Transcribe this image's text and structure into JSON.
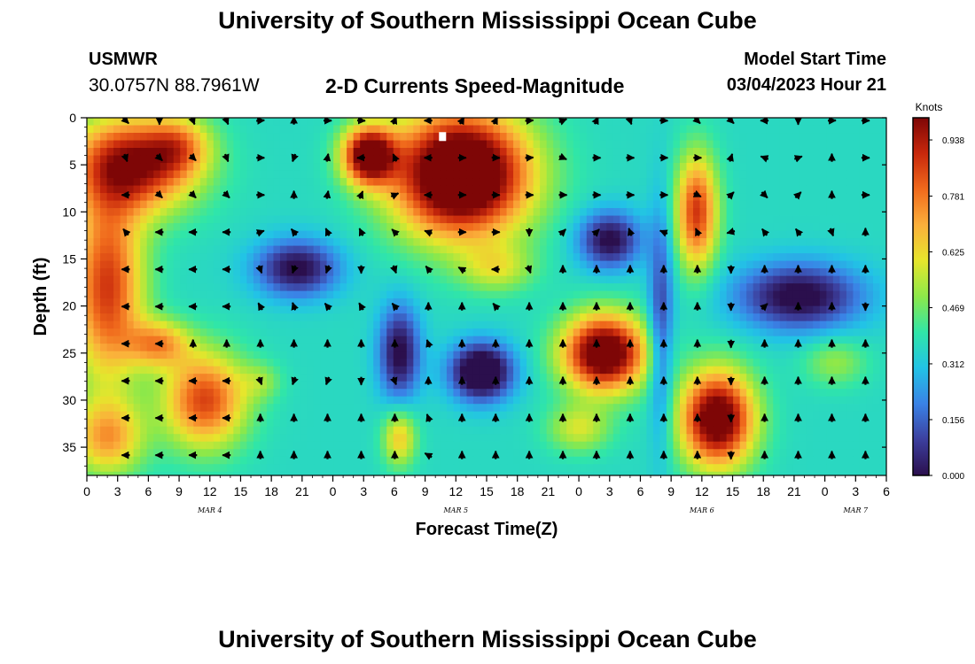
{
  "header": {
    "title": "University of Southern Mississippi Ocean Cube",
    "station_code": "USMWR",
    "coordinates": "30.0757N  88.7961W",
    "subtitle": "2-D Currents Speed-Magnitude",
    "model_start_label": "Model Start Time",
    "model_start_value": "03/04/2023 Hour 21"
  },
  "footer": {
    "title": "University of Southern Mississippi Ocean Cube"
  },
  "chart_data": {
    "type": "heatmap",
    "title": "2-D Currents Speed-Magnitude",
    "xlabel": "Forecast Time(Z)",
    "ylabel": "Depth (ft)",
    "xlim": [
      0,
      78
    ],
    "ylim": [
      38,
      0
    ],
    "x_ticks": [
      0,
      3,
      6,
      9,
      12,
      15,
      18,
      21,
      24,
      27,
      30,
      33,
      36,
      39,
      42,
      45,
      48,
      51,
      54,
      57,
      60,
      63,
      66,
      69,
      72,
      75,
      78
    ],
    "x_tick_labels": [
      "0",
      "3",
      "6",
      "9",
      "12",
      "15",
      "18",
      "21",
      "0",
      "3",
      "6",
      "9",
      "12",
      "15",
      "18",
      "21",
      "0",
      "3",
      "6",
      "9",
      "12",
      "15",
      "18",
      "21",
      "0",
      "3",
      "6"
    ],
    "y_ticks": [
      0,
      5,
      10,
      15,
      20,
      25,
      30,
      35
    ],
    "date_labels": [
      {
        "text": "MAR 4",
        "x": 12
      },
      {
        "text": "MAR 5",
        "x": 36
      },
      {
        "text": "MAR 6",
        "x": 60
      },
      {
        "text": "MAR 7",
        "x": 75
      }
    ],
    "colorbar": {
      "units": "Knots",
      "min": 0.0,
      "max": 1.0,
      "ticks": [
        0.0,
        0.156,
        0.312,
        0.469,
        0.625,
        0.781,
        0.938
      ],
      "tick_labels": [
        "0.000",
        "0.156",
        "0.312",
        "0.469",
        "0.625",
        "0.781",
        "0.938"
      ],
      "colors": [
        "#2b0f4d",
        "#3c3f9e",
        "#3a82e6",
        "#22c3e6",
        "#30e6a8",
        "#8ce84a",
        "#e6e62c",
        "#fbb03b",
        "#f06a1c",
        "#c8280c",
        "#7e0606"
      ]
    },
    "speed_blobs": [
      {
        "x": 4.5,
        "y": 5,
        "sx": 6.0,
        "sy": 5.0,
        "v": 0.62
      },
      {
        "x": 2.0,
        "y": 18,
        "sx": 3.5,
        "sy": 10.0,
        "v": 0.52
      },
      {
        "x": 9.0,
        "y": 3,
        "sx": 3.0,
        "sy": 3.0,
        "v": 0.25
      },
      {
        "x": 11.5,
        "y": 30,
        "sx": 4.0,
        "sy": 5.0,
        "v": 0.5
      },
      {
        "x": 2.0,
        "y": 34,
        "sx": 3.5,
        "sy": 4.0,
        "v": 0.35
      },
      {
        "x": 7.0,
        "y": 24,
        "sx": 3.0,
        "sy": 2.5,
        "v": 0.35
      },
      {
        "x": 20.5,
        "y": 16,
        "sx": 4.0,
        "sy": 3.0,
        "v": -0.38
      },
      {
        "x": 27.5,
        "y": 4,
        "sx": 2.5,
        "sy": 3.0,
        "v": 0.72
      },
      {
        "x": 36.5,
        "y": 6,
        "sx": 6.5,
        "sy": 6.5,
        "v": 0.92
      },
      {
        "x": 40.0,
        "y": 16,
        "sx": 3.5,
        "sy": 2.5,
        "v": 0.2
      },
      {
        "x": 30.5,
        "y": 25,
        "sx": 2.0,
        "sy": 5.0,
        "v": -0.38
      },
      {
        "x": 38.5,
        "y": 27,
        "sx": 3.0,
        "sy": 3.0,
        "v": -0.52
      },
      {
        "x": 50.5,
        "y": 25,
        "sx": 4.0,
        "sy": 4.0,
        "v": 0.78
      },
      {
        "x": 48.0,
        "y": 33,
        "sx": 3.0,
        "sy": 2.5,
        "v": 0.22
      },
      {
        "x": 51.0,
        "y": 13,
        "sx": 3.0,
        "sy": 3.0,
        "v": -0.38
      },
      {
        "x": 56.0,
        "y": 22,
        "sx": 1.2,
        "sy": 12.0,
        "v": -0.26
      },
      {
        "x": 59.5,
        "y": 10,
        "sx": 2.0,
        "sy": 6.0,
        "v": 0.52
      },
      {
        "x": 61.5,
        "y": 32,
        "sx": 3.5,
        "sy": 5.0,
        "v": 0.75
      },
      {
        "x": 69.5,
        "y": 19,
        "sx": 6.0,
        "sy": 3.5,
        "v": -0.4
      },
      {
        "x": 30.5,
        "y": 34,
        "sx": 1.6,
        "sy": 3.0,
        "v": 0.3
      },
      {
        "x": 17.0,
        "y": 28,
        "sx": 2.0,
        "sy": 2.0,
        "v": 0.12
      },
      {
        "x": 73.0,
        "y": 26,
        "sx": 3.0,
        "sy": 2.5,
        "v": 0.15
      }
    ],
    "vector_angles_deg": [
      [
        135,
        180,
        158,
        158,
        86,
        0,
        90,
        93,
        23,
        270,
        30,
        27,
        86,
        68,
        26,
        160,
        92,
        135,
        135,
        270,
        180,
        88,
        90,
        158
      ],
      [
        160,
        135,
        135,
        158,
        90,
        200,
        10,
        267,
        336,
        270,
        90,
        93,
        87,
        114,
        90,
        90,
        90,
        90,
        18,
        290,
        70,
        0,
        90,
        180
      ],
      [
        270,
        135,
        135,
        135,
        90,
        0,
        10,
        23,
        66,
        270,
        90,
        90,
        90,
        90,
        90,
        90,
        90,
        115,
        45,
        135,
        45,
        0,
        90,
        45
      ],
      [
        320,
        270,
        270,
        270,
        70,
        320,
        335,
        335,
        315,
        290,
        90,
        90,
        180,
        45,
        45,
        340,
        292,
        336,
        255,
        323,
        323,
        160,
        0,
        158
      ],
      [
        270,
        270,
        270,
        270,
        160,
        200,
        200,
        180,
        160,
        320,
        300,
        270,
        160,
        0,
        0,
        0,
        0,
        0,
        180,
        0,
        0,
        0,
        0,
        0
      ],
      [
        270,
        270,
        270,
        270,
        330,
        340,
        320,
        330,
        320,
        0,
        0,
        320,
        0,
        0,
        0,
        0,
        0,
        0,
        180,
        45,
        0,
        0,
        180,
        0
      ],
      [
        270,
        270,
        0,
        0,
        0,
        0,
        0,
        0,
        0,
        340,
        0,
        0,
        0,
        0,
        0,
        0,
        0,
        0,
        180,
        0,
        0,
        0,
        0,
        0
      ],
      [
        270,
        270,
        270,
        270,
        160,
        200,
        200,
        180,
        160,
        0,
        0,
        0,
        0,
        0,
        0,
        0,
        0,
        0,
        180,
        0,
        0,
        0,
        0,
        0
      ],
      [
        270,
        270,
        270,
        270,
        0,
        0,
        0,
        0,
        0,
        340,
        0,
        0,
        0,
        0,
        0,
        0,
        0,
        0,
        180,
        0,
        0,
        0,
        0,
        0
      ],
      [
        270,
        270,
        270,
        270,
        0,
        0,
        0,
        0,
        0,
        300,
        0,
        0,
        0,
        0,
        0,
        0,
        0,
        0,
        180,
        0,
        0,
        0,
        0,
        0
      ]
    ],
    "marker": {
      "x": 34.7,
      "y": 2
    }
  }
}
